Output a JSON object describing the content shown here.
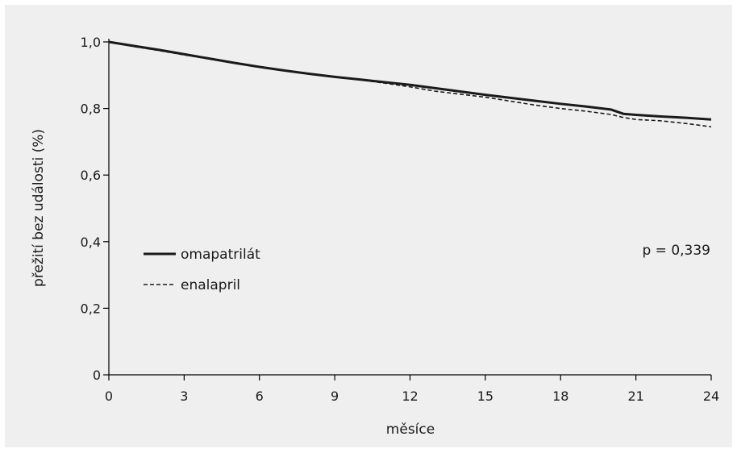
{
  "chart_data": {
    "type": "line",
    "xlabel": "měsíce",
    "ylabel": "přežití bez události (%)",
    "xlim": [
      0,
      24
    ],
    "ylim": [
      0,
      1.0
    ],
    "x_ticks": [
      0,
      3,
      6,
      9,
      12,
      15,
      18,
      21,
      24
    ],
    "x_tick_labels": [
      "0",
      "3",
      "6",
      "9",
      "12",
      "15",
      "18",
      "21",
      "24"
    ],
    "y_ticks": [
      0,
      0.2,
      0.4,
      0.6,
      0.8,
      1.0
    ],
    "y_tick_labels": [
      "0",
      "0,2",
      "0,4",
      "0,6",
      "0,8",
      "1,0"
    ],
    "grid": false,
    "legend_position": "middle-left",
    "annotation": "p = 0,339",
    "series": [
      {
        "name": "omapatrilát",
        "style": "solid",
        "x": [
          0,
          1,
          2,
          3,
          4,
          5,
          6,
          7,
          8,
          9,
          10,
          11,
          12,
          13,
          14,
          15,
          16,
          17,
          18,
          19,
          20,
          20.5,
          21,
          22,
          23,
          24
        ],
        "y": [
          1.0,
          0.988,
          0.976,
          0.963,
          0.95,
          0.937,
          0.925,
          0.914,
          0.904,
          0.895,
          0.887,
          0.879,
          0.871,
          0.861,
          0.851,
          0.841,
          0.832,
          0.823,
          0.814,
          0.806,
          0.797,
          0.784,
          0.781,
          0.776,
          0.772,
          0.767
        ]
      },
      {
        "name": "enalapril",
        "style": "dashed",
        "x": [
          0,
          1,
          2,
          3,
          4,
          5,
          6,
          7,
          8,
          9,
          10,
          11,
          12,
          13,
          14,
          15,
          16,
          17,
          18,
          19,
          20,
          20.5,
          21,
          22,
          23,
          24
        ],
        "y": [
          1.0,
          0.986,
          0.974,
          0.961,
          0.949,
          0.937,
          0.926,
          0.915,
          0.905,
          0.896,
          0.886,
          0.876,
          0.865,
          0.852,
          0.843,
          0.834,
          0.822,
          0.81,
          0.8,
          0.792,
          0.782,
          0.773,
          0.767,
          0.763,
          0.755,
          0.745
        ]
      }
    ]
  }
}
